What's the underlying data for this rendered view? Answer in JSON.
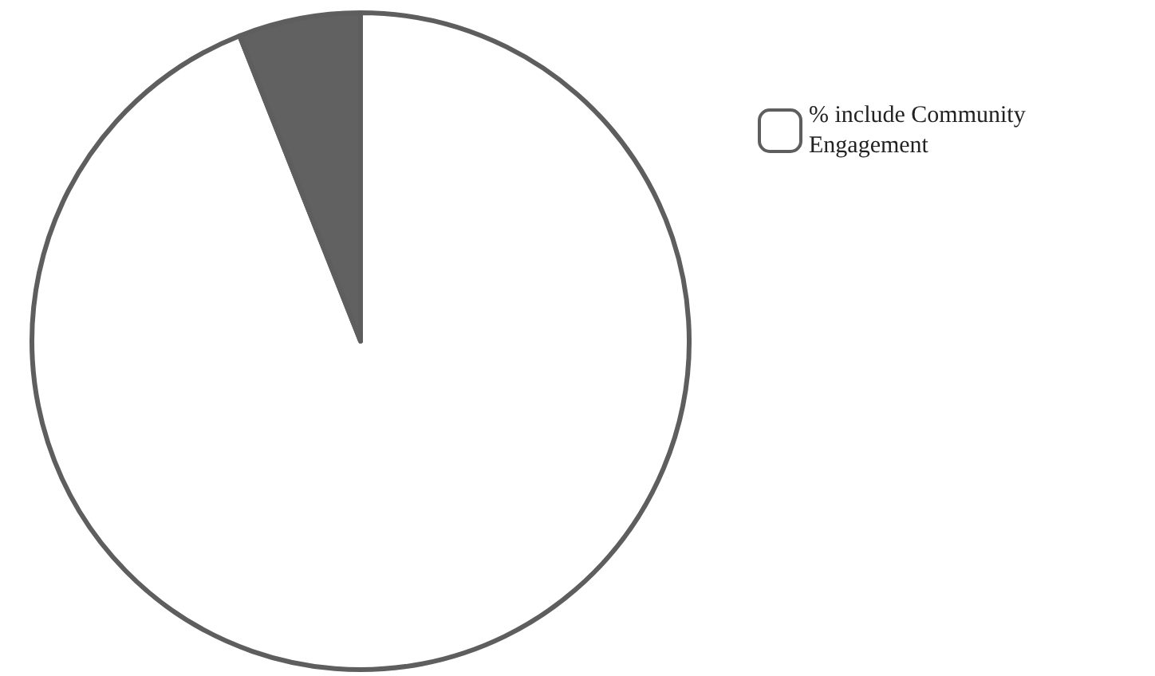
{
  "chart_data": {
    "type": "pie",
    "categories": [
      "% include Community Engagement",
      null
    ],
    "values": [
      94,
      6
    ],
    "colors": [
      "#ffffff",
      "#616161"
    ],
    "legend": "top right"
  }
}
